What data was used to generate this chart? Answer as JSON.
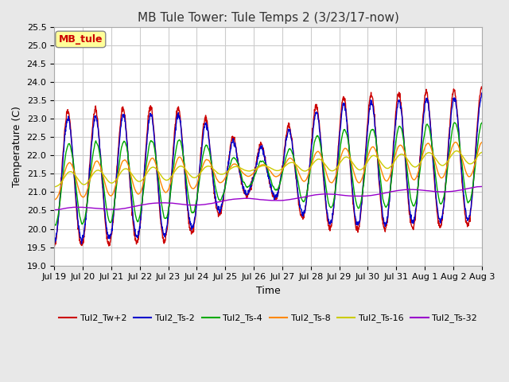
{
  "title": "MB Tule Tower: Tule Temps 2 (3/23/17-now)",
  "xlabel": "Time",
  "ylabel": "Temperature (C)",
  "ylim": [
    19.0,
    25.5
  ],
  "yticks": [
    19.0,
    19.5,
    20.0,
    20.5,
    21.0,
    21.5,
    22.0,
    22.5,
    23.0,
    23.5,
    24.0,
    24.5,
    25.0,
    25.5
  ],
  "xtick_labels": [
    "Jul 19",
    "Jul 20",
    "Jul 21",
    "Jul 22",
    "Jul 23",
    "Jul 24",
    "Jul 25",
    "Jul 26",
    "Jul 27",
    "Jul 28",
    "Jul 29",
    "Jul 30",
    "Jul 31",
    "Aug 1",
    "Aug 2",
    "Aug 3"
  ],
  "legend_label": "MB_tule",
  "series_labels": [
    "Tul2_Tw+2",
    "Tul2_Ts-2",
    "Tul2_Ts-4",
    "Tul2_Ts-8",
    "Tul2_Ts-16",
    "Tul2_Ts-32"
  ],
  "series_colors": [
    "#cc0000",
    "#0000cc",
    "#00aa00",
    "#ff8800",
    "#cccc00",
    "#9900cc"
  ],
  "background_color": "#e8e8e8",
  "plot_bg_color": "#ffffff",
  "grid_color": "#cccccc",
  "title_fontsize": 11,
  "tick_fontsize": 8,
  "label_fontsize": 9,
  "linewidth": 1.0
}
